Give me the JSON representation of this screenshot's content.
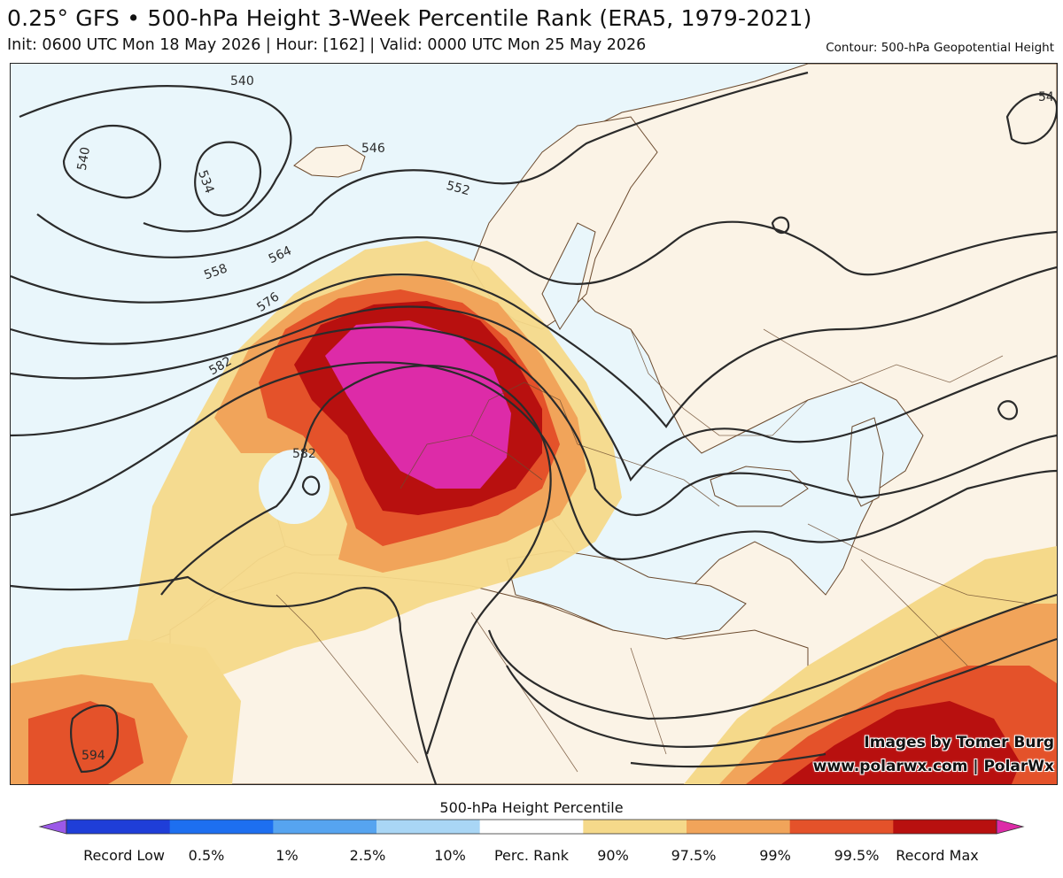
{
  "header": {
    "title": "0.25° GFS • 500-hPa Height 3-Week Percentile Rank (ERA5, 1979-2021)",
    "subtitle": "Init: 0600 UTC Mon 18 May 2026 | Hour: [162] | Valid: 0000 UTC Mon 25 May 2026",
    "contour_note": "Contour: 500-hPa Geopotential Height"
  },
  "map": {
    "contour_labels": [
      "540",
      "540",
      "534",
      "546",
      "552",
      "558",
      "564",
      "576",
      "582",
      "582",
      "594",
      "54"
    ],
    "colors": {
      "ocean": "#e9f6fb",
      "land": "#fbf3e6",
      "p90": "#f5d98a",
      "p975": "#f1a45a",
      "p99": "#e4522a",
      "p995": "#b8100f",
      "record_max": "#dd2ba8",
      "contour": "#2b2b2b",
      "border": "#6b4a2e"
    }
  },
  "credits": {
    "line1": "Images by Tomer Burg",
    "line2": "www.polarwx.com | PolarWx"
  },
  "colorbar": {
    "title": "500-hPa Height Percentile",
    "labels": [
      "Record Low",
      "0.5%",
      "1%",
      "2.5%",
      "10%",
      "Perc. Rank",
      "90%",
      "97.5%",
      "99%",
      "99.5%",
      "Record Max"
    ],
    "colors": [
      "#9b59e8",
      "#1f3ed8",
      "#1d6ff0",
      "#56a4f0",
      "#a9d6f5",
      "#ffffff",
      "#f5d98a",
      "#f1a45a",
      "#e4522a",
      "#b8100f",
      "#dd2ba8"
    ]
  }
}
